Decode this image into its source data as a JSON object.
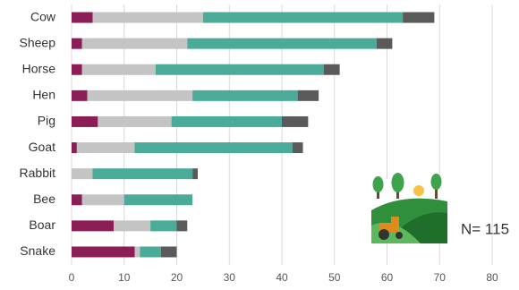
{
  "chart_data": {
    "type": "stacked-bar-horizontal",
    "categories": [
      "Cow",
      "Sheep",
      "Horse",
      "Hen",
      "Pig",
      "Goat",
      "Rabbit",
      "Bee",
      "Boar",
      "Snake"
    ],
    "series": [
      {
        "color": "#8b1e57",
        "values": [
          4,
          2,
          2,
          3,
          5,
          1,
          0,
          2,
          8,
          12
        ]
      },
      {
        "color": "#c4c4c4",
        "values": [
          21,
          20,
          14,
          20,
          14,
          11,
          4,
          8,
          7,
          1
        ]
      },
      {
        "color": "#4aab98",
        "values": [
          38,
          36,
          32,
          20,
          21,
          30,
          19,
          13,
          5,
          4
        ]
      },
      {
        "color": "#5a5a5a",
        "values": [
          6,
          3,
          3,
          4,
          5,
          2,
          1,
          0,
          2,
          3
        ]
      }
    ],
    "xlim": [
      0,
      80
    ],
    "xticks": [
      0,
      10,
      20,
      30,
      40,
      50,
      60,
      70,
      80
    ],
    "grid": true,
    "annotation": "N= 115"
  }
}
